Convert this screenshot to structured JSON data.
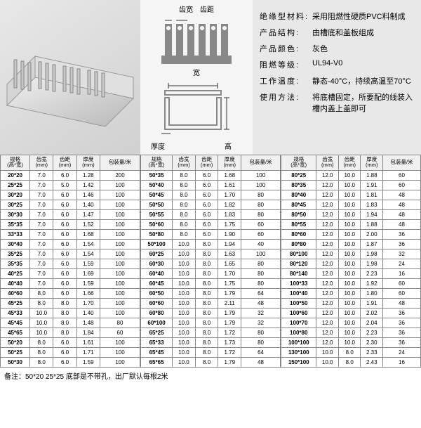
{
  "diagram_labels": {
    "tooth_w": "齿宽",
    "tooth_d": "齿距",
    "width": "宽",
    "height": "高",
    "thickness": "厚度"
  },
  "props": [
    {
      "k": "绝缘型材料:",
      "v": "采用阻燃性硬质PVC料制成"
    },
    {
      "k": "产品结构:",
      "v": "由槽底和盖板组成"
    },
    {
      "k": "产品颜色:",
      "v": "灰色"
    },
    {
      "k": "阻燃等级:",
      "v": "UL94-V0"
    },
    {
      "k": "工作温度:",
      "v": "静态-40°C，持续高温至70°C"
    },
    {
      "k": "使用方法:",
      "v": "将底槽固定，所要配的线装入槽内盖上盖即可"
    }
  ],
  "headers": [
    "规格\n(高*宽)",
    "齿宽\n(mm)",
    "齿距\n(mm)",
    "厚度\n(mm)",
    "包装量/米"
  ],
  "t1": [
    [
      "20*20",
      "7.0",
      "6.0",
      "1.28",
      "200"
    ],
    [
      "25*25",
      "7.0",
      "5.0",
      "1.42",
      "100"
    ],
    [
      "30*20",
      "7.0",
      "6.0",
      "1.46",
      "100"
    ],
    [
      "30*25",
      "7.0",
      "6.0",
      "1.40",
      "100"
    ],
    [
      "30*30",
      "7.0",
      "6.0",
      "1.47",
      "100"
    ],
    [
      "35*35",
      "7.0",
      "6.0",
      "1.52",
      "100"
    ],
    [
      "33*33",
      "7.0",
      "6.0",
      "1.68",
      "100"
    ],
    [
      "30*40",
      "7.0",
      "6.0",
      "1.54",
      "100"
    ],
    [
      "35*25",
      "7.0",
      "6.0",
      "1.54",
      "100"
    ],
    [
      "35*35",
      "7.0",
      "6.0",
      "1.59",
      "100"
    ],
    [
      "40*25",
      "7.0",
      "6.0",
      "1.69",
      "100"
    ],
    [
      "40*40",
      "7.0",
      "6.0",
      "1.59",
      "100"
    ],
    [
      "40*60",
      "8.0",
      "6.0",
      "1.66",
      "100"
    ],
    [
      "45*25",
      "8.0",
      "8.0",
      "1.70",
      "100"
    ],
    [
      "45*33",
      "10.0",
      "8.0",
      "1.40",
      "100"
    ],
    [
      "45*45",
      "10.0",
      "8.0",
      "1.48",
      "80"
    ],
    [
      "45*65",
      "10.0",
      "8.0",
      "1.84",
      "60"
    ],
    [
      "50*20",
      "8.0",
      "6.0",
      "1.61",
      "100"
    ],
    [
      "50*25",
      "8.0",
      "6.0",
      "1.71",
      "100"
    ],
    [
      "50*30",
      "8.0",
      "6.0",
      "1.59",
      "100"
    ]
  ],
  "t2": [
    [
      "50*35",
      "8.0",
      "6.0",
      "1.68",
      "100"
    ],
    [
      "50*40",
      "8.0",
      "6.0",
      "1.61",
      "100"
    ],
    [
      "50*45",
      "8.0",
      "6.0",
      "1.70",
      "80"
    ],
    [
      "50*50",
      "8.0",
      "6.0",
      "1.82",
      "80"
    ],
    [
      "50*55",
      "8.0",
      "6.0",
      "1.83",
      "80"
    ],
    [
      "50*60",
      "8.0",
      "6.0",
      "1.75",
      "60"
    ],
    [
      "50*80",
      "8.0",
      "6.0",
      "1.90",
      "60"
    ],
    [
      "50*100",
      "10.0",
      "8.0",
      "1.94",
      "40"
    ],
    [
      "60*25",
      "10.0",
      "8.0",
      "1.63",
      "100"
    ],
    [
      "60*30",
      "10.0",
      "8.0",
      "1.65",
      "80"
    ],
    [
      "60*40",
      "10.0",
      "8.0",
      "1.70",
      "80"
    ],
    [
      "60*45",
      "10.0",
      "8.0",
      "1.75",
      "80"
    ],
    [
      "60*50",
      "10.0",
      "8.0",
      "1.79",
      "64"
    ],
    [
      "60*60",
      "10.0",
      "8.0",
      "2.11",
      "48"
    ],
    [
      "60*80",
      "10.0",
      "8.0",
      "1.79",
      "32"
    ],
    [
      "60*100",
      "10.0",
      "8.0",
      "1.79",
      "32"
    ],
    [
      "65*25",
      "10.0",
      "8.0",
      "1.72",
      "80"
    ],
    [
      "65*33",
      "10.0",
      "8.0",
      "1.73",
      "80"
    ],
    [
      "65*45",
      "10.0",
      "8.0",
      "1.72",
      "64"
    ],
    [
      "65*65",
      "10.0",
      "8.0",
      "1.79",
      "48"
    ]
  ],
  "t3": [
    [
      "80*25",
      "12.0",
      "10.0",
      "1.88",
      "60"
    ],
    [
      "80*35",
      "12.0",
      "10.0",
      "1.91",
      "60"
    ],
    [
      "80*40",
      "12.0",
      "10.0",
      "1.81",
      "48"
    ],
    [
      "80*45",
      "12.0",
      "10.0",
      "1.83",
      "48"
    ],
    [
      "80*50",
      "12.0",
      "10.0",
      "1.94",
      "48"
    ],
    [
      "80*55",
      "12.0",
      "10.0",
      "1.88",
      "48"
    ],
    [
      "80*60",
      "12.0",
      "10.0",
      "2.00",
      "36"
    ],
    [
      "80*80",
      "12.0",
      "10.0",
      "1.87",
      "36"
    ],
    [
      "80*100",
      "12.0",
      "10.0",
      "1.98",
      "32"
    ],
    [
      "80*120",
      "12.0",
      "10.0",
      "1.98",
      "24"
    ],
    [
      "80*140",
      "12.0",
      "10.0",
      "2.23",
      "16"
    ],
    [
      "100*33",
      "12.0",
      "10.0",
      "1.92",
      "60"
    ],
    [
      "100*40",
      "12.0",
      "10.0",
      "1.80",
      "60"
    ],
    [
      "100*50",
      "12.0",
      "10.0",
      "1.91",
      "48"
    ],
    [
      "100*60",
      "12.0",
      "10.0",
      "2.02",
      "36"
    ],
    [
      "100*70",
      "12.0",
      "10.0",
      "2.04",
      "36"
    ],
    [
      "100*80",
      "12.0",
      "10.0",
      "2.23",
      "36"
    ],
    [
      "100*100",
      "12.0",
      "10.0",
      "2.30",
      "36"
    ],
    [
      "130*100",
      "10.0",
      "8.0",
      "2.33",
      "24"
    ],
    [
      "150*100",
      "10.0",
      "8.0",
      "2.43",
      "16"
    ]
  ],
  "note": "备注：50*20 25*25 底部是不带孔，出厂默认每根2米",
  "colors": {
    "header_bg": "#f0f0f0",
    "border": "#888",
    "panel": "#e8e8e8"
  }
}
